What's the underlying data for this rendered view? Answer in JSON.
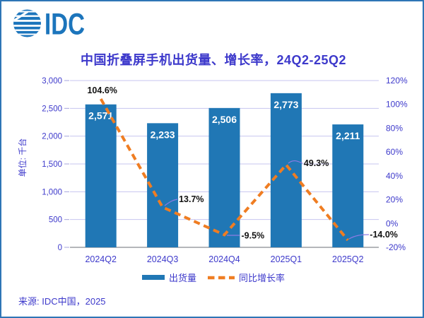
{
  "brand": {
    "logo_text": "IDC"
  },
  "title": "中国折叠屏手机出货量、增长率，24Q2-25Q2",
  "source_note": "来源: IDC中国，2025",
  "legend": [
    {
      "label": "出货量",
      "type": "bar"
    },
    {
      "label": "同比增长率",
      "type": "dashed-line"
    }
  ],
  "colors": {
    "bar": "#2077B5",
    "line": "#EF7D22",
    "blue_text": "#3D39CB",
    "grid": "#C7C5EF",
    "tick": "#A5A3DC",
    "zero_axis": "#9B9DA3",
    "leader": "#8C7BE4",
    "growth_label": "#121212",
    "bar_value_label": "#FFFFFF",
    "border": "#2E75B6",
    "logo": "#1C75BC"
  },
  "chart_data": {
    "type": "combo-bar-line",
    "categories": [
      "2024Q2",
      "2024Q3",
      "2024Q4",
      "2025Q1",
      "2025Q2"
    ],
    "series": [
      {
        "name": "出货量",
        "type": "bar",
        "axis": "left",
        "values": [
          2571,
          2233,
          2506,
          2773,
          2211
        ],
        "value_labels": [
          "2,571",
          "2,233",
          "2,506",
          "2,773",
          "2,211"
        ]
      },
      {
        "name": "同比增长率",
        "type": "line",
        "axis": "right",
        "line_style": "dashed",
        "values": [
          104.6,
          13.7,
          -9.5,
          49.3,
          -14.0
        ],
        "value_labels": [
          "104.6%",
          "13.7%",
          "-9.5%",
          "49.3%",
          "-14.0%"
        ]
      }
    ],
    "left_axis": {
      "title": "单位: 千台",
      "min": 0,
      "max": 3000,
      "step": 500,
      "tick_labels": [
        "0",
        "500",
        "1,000",
        "1,500",
        "2,000",
        "2,500",
        "3,000"
      ]
    },
    "right_axis": {
      "min": -20,
      "max": 120,
      "step": 20,
      "tick_labels": [
        "-20%",
        "0%",
        "20%",
        "40%",
        "60%",
        "80%",
        "100%",
        "120%"
      ]
    },
    "grid": true,
    "legend_position": "bottom"
  }
}
